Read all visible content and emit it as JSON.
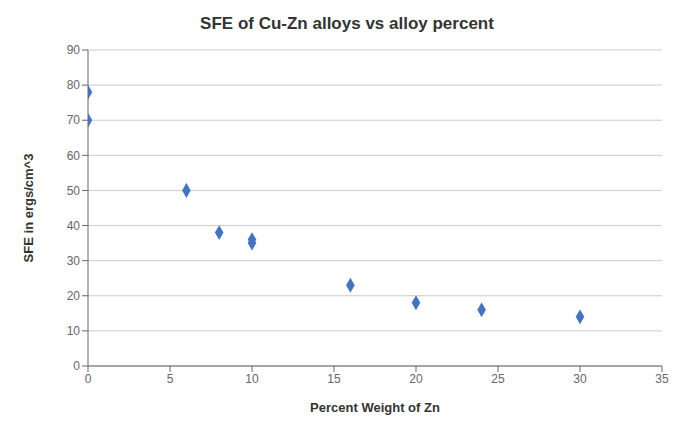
{
  "chart_data": {
    "type": "scatter",
    "title": "SFE of Cu-Zn alloys vs alloy percent",
    "xlabel": "Percent Weight of Zn",
    "ylabel": "SFE in ergs/cm^3",
    "x": [
      0,
      0,
      6,
      8,
      10,
      10,
      16,
      20,
      24,
      30
    ],
    "values": [
      78,
      70,
      50,
      38,
      36,
      35,
      23,
      18,
      16,
      14
    ],
    "xlim": [
      0,
      35
    ],
    "ylim": [
      0,
      90
    ],
    "xticks": [
      0,
      5,
      10,
      15,
      20,
      25,
      30,
      35
    ],
    "yticks": [
      0,
      10,
      20,
      30,
      40,
      50,
      60,
      70,
      80,
      90
    ],
    "color": "#4472C4",
    "marker": "diamond",
    "grid": "y"
  }
}
